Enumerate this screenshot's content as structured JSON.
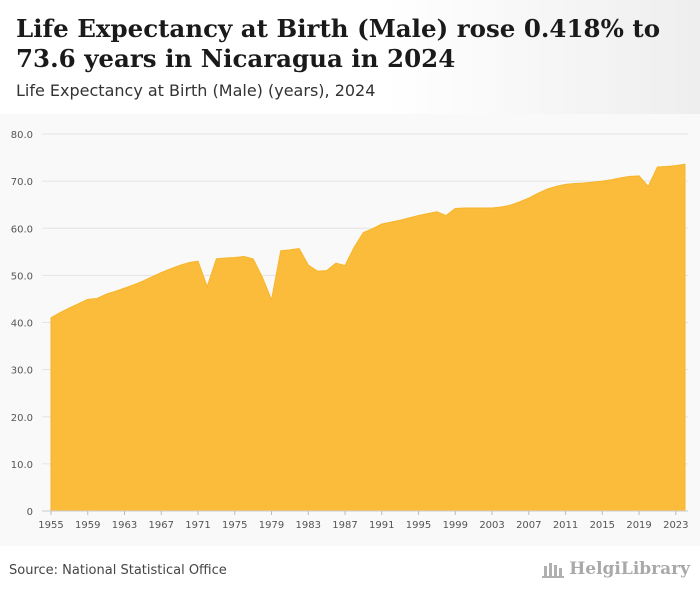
{
  "header": {
    "title": "Life Expectancy at Birth (Male) rose 0.418% to 73.6 years in Nicaragua in 2024",
    "subtitle": "Life Expectancy at Birth (Male) (years), 2024"
  },
  "footer": {
    "source": "Source: National Statistical Office",
    "brand": "HelgiLibrary"
  },
  "colors": {
    "area_fill": "#fbbc3c",
    "area_stroke": "#f7b52a",
    "grid": "#e4e4e4",
    "axis_text": "#555555"
  },
  "chart_data": {
    "type": "area",
    "title": "",
    "xlabel": "",
    "ylabel": "",
    "ylim": [
      0,
      80
    ],
    "xlim": [
      1955,
      2024
    ],
    "grid": true,
    "y_ticks": [
      "0",
      "10.0",
      "20.0",
      "30.0",
      "40.0",
      "50.0",
      "60.0",
      "70.0",
      "80.0"
    ],
    "x_ticks": [
      "1955",
      "1959",
      "1963",
      "1967",
      "1971",
      "1975",
      "1979",
      "1983",
      "1987",
      "1991",
      "1995",
      "1999",
      "2003",
      "2007",
      "2011",
      "2015",
      "2019",
      "2023"
    ],
    "x": [
      1955,
      1956,
      1957,
      1958,
      1959,
      1960,
      1961,
      1962,
      1963,
      1964,
      1965,
      1966,
      1967,
      1968,
      1969,
      1970,
      1971,
      1972,
      1973,
      1974,
      1975,
      1976,
      1977,
      1978,
      1979,
      1980,
      1981,
      1982,
      1983,
      1984,
      1985,
      1986,
      1987,
      1988,
      1989,
      1990,
      1991,
      1992,
      1993,
      1994,
      1995,
      1996,
      1997,
      1998,
      1999,
      2000,
      2001,
      2002,
      2003,
      2004,
      2005,
      2006,
      2007,
      2008,
      2009,
      2010,
      2011,
      2012,
      2013,
      2014,
      2015,
      2016,
      2017,
      2018,
      2019,
      2020,
      2021,
      2022,
      2023,
      2024
    ],
    "series": [
      {
        "values": [
          41.0,
          42.1,
          43.1,
          44.0,
          44.9,
          45.1,
          46.0,
          46.6,
          47.3,
          48.0,
          48.8,
          49.7,
          50.6,
          51.4,
          52.1,
          52.7,
          53.0,
          47.6,
          53.5,
          53.7,
          53.8,
          54.0,
          53.5,
          49.6,
          44.8,
          55.2,
          55.4,
          55.7,
          52.2,
          50.9,
          51.0,
          52.6,
          52.1,
          56.0,
          59.1,
          59.9,
          60.9,
          61.3,
          61.7,
          62.2,
          62.7,
          63.1,
          63.5,
          62.7,
          64.2,
          64.3,
          64.3,
          64.3,
          64.3,
          64.5,
          64.9,
          65.6,
          66.4,
          67.4,
          68.3,
          68.9,
          69.3,
          69.5,
          69.6,
          69.8,
          70.0,
          70.3,
          70.7,
          71.0,
          71.1,
          68.9,
          73.0,
          73.1,
          73.3,
          73.6
        ]
      }
    ]
  }
}
